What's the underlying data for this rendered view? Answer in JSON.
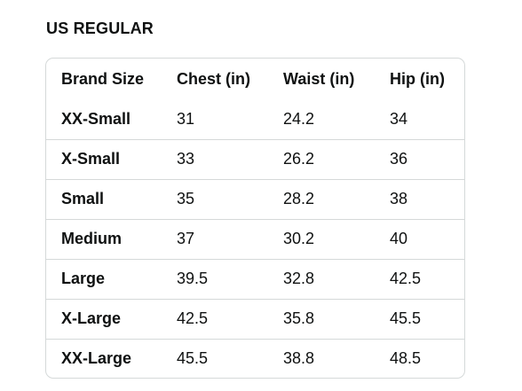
{
  "section_title": "US REGULAR",
  "table": {
    "headers": [
      "Brand Size",
      "Chest (in)",
      "Waist (in)",
      "Hip (in)"
    ],
    "rows": [
      [
        "XX-Small",
        "31",
        "24.2",
        "34"
      ],
      [
        "X-Small",
        "33",
        "26.2",
        "36"
      ],
      [
        "Small",
        "35",
        "28.2",
        "38"
      ],
      [
        "Medium",
        "37",
        "30.2",
        "40"
      ],
      [
        "Large",
        "39.5",
        "32.8",
        "42.5"
      ],
      [
        "X-Large",
        "42.5",
        "35.8",
        "45.5"
      ],
      [
        "XX-Large",
        "45.5",
        "38.8",
        "48.5"
      ]
    ]
  }
}
